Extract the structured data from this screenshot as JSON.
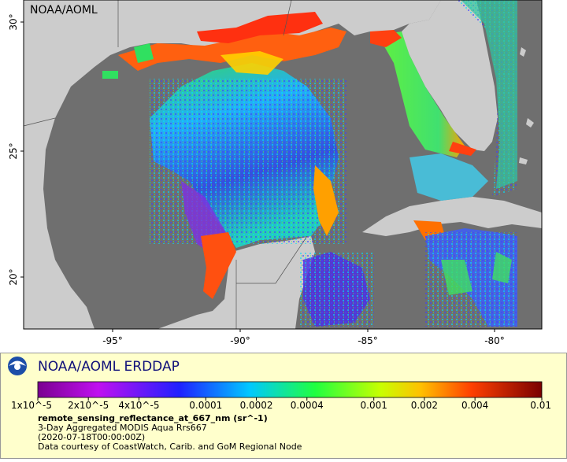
{
  "map": {
    "title": "NOAA/AOML",
    "lat_ticks": [
      "30°",
      "25°",
      "20°"
    ],
    "lon_ticks": [
      "-95°",
      "-90°",
      "-85°",
      "-80°"
    ]
  },
  "legend": {
    "title": "NOAA/AOML ERDDAP",
    "colorbar_ticks": [
      "1x10^-5",
      "2x10^-5",
      "4x10^-5",
      "0.0001",
      "0.0002",
      "0.0004",
      "0.001",
      "0.002",
      "0.004",
      "0.01"
    ],
    "variable": "remote_sensing_reflectance_at_667_nm (sr^-1)",
    "lines": [
      "3-Day Aggregated MODIS Aqua Rrs667",
      "(2020-07-18T00:00:00Z)",
      "Data courtesy of CoastWatch, Carib. and GoM Regional Node"
    ]
  }
}
